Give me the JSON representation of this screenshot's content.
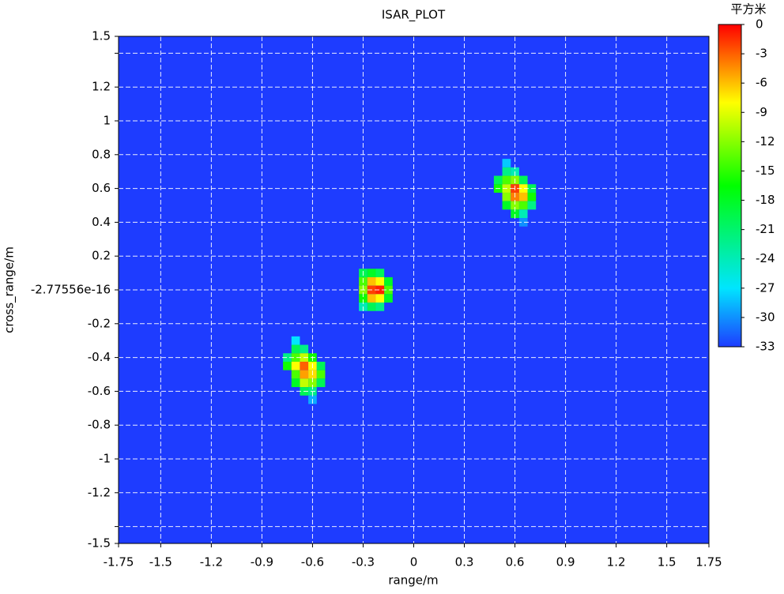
{
  "chart_data": {
    "type": "heatmap",
    "title": "ISAR_PLOT",
    "x_label": "range/m",
    "y_label": "cross_range/m",
    "colorbar_title": "平方米",
    "xlim": [
      -1.75,
      1.75
    ],
    "ylim": [
      -1.5,
      1.5
    ],
    "xticks": [
      -1.75,
      -1.5,
      -1.2,
      -0.9,
      -0.6,
      -0.3,
      0,
      0.3,
      0.6,
      0.9,
      1.2,
      1.5,
      1.75
    ],
    "yticks": [
      1.5,
      {
        "value": 1.4,
        "label": null
      },
      1.2,
      1,
      0.8,
      0.6,
      0.4,
      0.2,
      -2.77556e-16,
      -0.2,
      -0.4,
      -0.6,
      -0.8,
      -1,
      -1.2,
      {
        "value": -1.4,
        "label": null
      },
      -1.5
    ],
    "grid": true,
    "clim": [
      -33,
      0
    ],
    "cticks": [
      0,
      -3,
      -6,
      -9,
      -12,
      -15,
      -18,
      -21,
      -24,
      -27,
      -30,
      -33
    ],
    "colorscale": [
      {
        "value": -33,
        "color": "#1e3cff"
      },
      {
        "value": -27,
        "color": "#00e5ff"
      },
      {
        "value": -16.5,
        "color": "#00ff00"
      },
      {
        "value": -8,
        "color": "#ffff00"
      },
      {
        "value": -4,
        "color": "#ff8000"
      },
      {
        "value": 0,
        "color": "#ff0000"
      }
    ],
    "fill_value": -33,
    "cell_width": 0.05,
    "cell_height": 0.05,
    "x": [
      -0.3,
      -0.25,
      -0.2,
      -0.3,
      -0.25,
      -0.2,
      -0.15,
      -0.3,
      -0.25,
      -0.2,
      -0.15,
      -0.3,
      -0.25,
      -0.2,
      -0.15,
      -0.3,
      -0.25,
      -0.2,
      -0.7,
      -0.7,
      -0.65,
      -0.75,
      -0.7,
      -0.65,
      -0.6,
      -0.75,
      -0.7,
      -0.65,
      -0.6,
      -0.55,
      -0.7,
      -0.65,
      -0.6,
      -0.55,
      -0.7,
      -0.65,
      -0.6,
      -0.55,
      -0.65,
      -0.6,
      -0.6,
      0.55,
      0.55,
      0.6,
      0.5,
      0.55,
      0.6,
      0.65,
      0.5,
      0.55,
      0.6,
      0.65,
      0.7,
      0.55,
      0.6,
      0.65,
      0.7,
      0.55,
      0.6,
      0.65,
      0.7,
      0.6,
      0.65,
      0.65
    ],
    "y": [
      0.1,
      0.1,
      0.1,
      0.05,
      0.05,
      0.05,
      0.05,
      0,
      0,
      0,
      0,
      -0.05,
      -0.05,
      -0.05,
      -0.05,
      -0.1,
      -0.1,
      -0.1,
      -0.3,
      -0.35,
      -0.35,
      -0.4,
      -0.4,
      -0.4,
      -0.4,
      -0.45,
      -0.45,
      -0.45,
      -0.45,
      -0.45,
      -0.5,
      -0.5,
      -0.5,
      -0.5,
      -0.55,
      -0.55,
      -0.55,
      -0.55,
      -0.6,
      -0.6,
      -0.65,
      0.75,
      0.7,
      0.7,
      0.65,
      0.65,
      0.65,
      0.65,
      0.6,
      0.6,
      0.6,
      0.6,
      0.6,
      0.55,
      0.55,
      0.55,
      0.55,
      0.5,
      0.5,
      0.5,
      0.5,
      0.45,
      0.45,
      0.4
    ],
    "values": [
      -20,
      -18,
      -20,
      -14,
      -6,
      -8,
      -18,
      -12,
      -2,
      -1,
      -14,
      -16,
      -6,
      -8,
      -18,
      -24,
      -20,
      -22,
      -27,
      -20,
      -22,
      -22,
      -14,
      -10,
      -16,
      -16,
      -8,
      -3,
      -8,
      -20,
      -14,
      -5,
      -7,
      -14,
      -18,
      -10,
      -12,
      -20,
      -20,
      -22,
      -29,
      -28,
      -22,
      -24,
      -20,
      -14,
      -12,
      -20,
      -16,
      -10,
      -2,
      -8,
      -20,
      -12,
      -4,
      -6,
      -16,
      -18,
      -12,
      -14,
      -22,
      -18,
      -24,
      -30
    ]
  }
}
